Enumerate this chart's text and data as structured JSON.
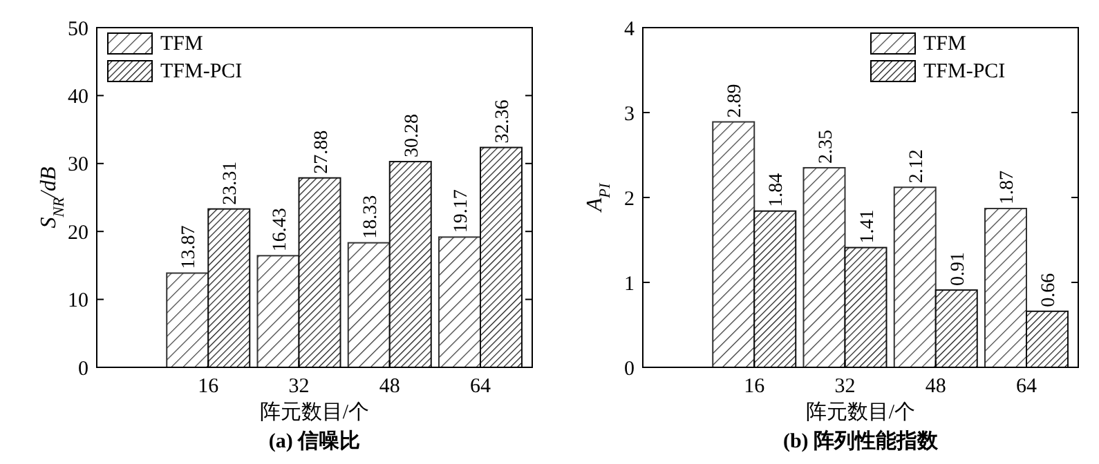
{
  "chart_data": [
    {
      "type": "bar",
      "title": "(a) 信噪比",
      "xlabel": "阵元数目/个",
      "ylabel": "S$_{NR}$/dB",
      "categories": [
        "16",
        "32",
        "48",
        "64"
      ],
      "series": [
        {
          "name": "TFM",
          "color": "#333333",
          "values": [
            13.87,
            16.43,
            18.33,
            19.17
          ]
        },
        {
          "name": "TFM-PCI",
          "color": "#111111",
          "values": [
            23.31,
            27.88,
            30.28,
            32.36
          ]
        }
      ],
      "ylim": [
        0,
        50
      ],
      "yticks": [
        0,
        10,
        20,
        30,
        40,
        50
      ],
      "data_labels": true,
      "legend": "top left",
      "grid": false
    },
    {
      "type": "bar",
      "title": "(b) 阵列性能指数",
      "xlabel": "阵元数目/个",
      "ylabel": "A$_{PI}$",
      "categories": [
        "16",
        "32",
        "48",
        "64"
      ],
      "series": [
        {
          "name": "TFM",
          "color": "#333333",
          "values": [
            2.89,
            2.35,
            2.12,
            1.87
          ]
        },
        {
          "name": "TFM-PCI",
          "color": "#111111",
          "values": [
            1.84,
            1.41,
            0.91,
            0.66
          ]
        }
      ],
      "ylim": [
        0,
        4
      ],
      "yticks": [
        0,
        1,
        2,
        3,
        4
      ],
      "data_labels": true,
      "legend": "top right",
      "grid": false
    }
  ]
}
